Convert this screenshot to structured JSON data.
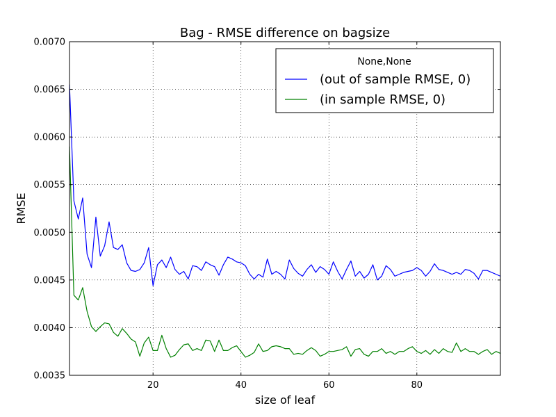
{
  "chart_data": {
    "type": "line",
    "title": "Bag - RMSE difference on bagsize",
    "xlabel": "size of leaf",
    "ylabel": "RMSE",
    "xlim": [
      1,
      99
    ],
    "ylim": [
      0.0035,
      0.007
    ],
    "xticks": [
      20,
      40,
      60,
      80
    ],
    "yticks": [
      0.0035,
      0.004,
      0.0045,
      0.005,
      0.0055,
      0.006,
      0.0065,
      0.007
    ],
    "ytick_labels": [
      "0.0035",
      "0.0040",
      "0.0045",
      "0.0050",
      "0.0055",
      "0.0060",
      "0.0065",
      "0.0070"
    ],
    "grid": true,
    "legend": {
      "title": "None,None",
      "position": "top-right"
    },
    "x": [
      1,
      2,
      3,
      4,
      5,
      6,
      7,
      8,
      9,
      10,
      11,
      12,
      13,
      14,
      15,
      16,
      17,
      18,
      19,
      20,
      21,
      22,
      23,
      24,
      25,
      26,
      27,
      28,
      29,
      30,
      31,
      32,
      33,
      34,
      35,
      36,
      37,
      38,
      39,
      40,
      41,
      42,
      43,
      44,
      45,
      46,
      47,
      48,
      49,
      50,
      51,
      52,
      53,
      54,
      55,
      56,
      57,
      58,
      59,
      60,
      61,
      62,
      63,
      64,
      65,
      66,
      67,
      68,
      69,
      70,
      71,
      72,
      73,
      74,
      75,
      76,
      77,
      78,
      79,
      80,
      81,
      82,
      83,
      84,
      85,
      86,
      87,
      88,
      89,
      90,
      91,
      92,
      93,
      94,
      95,
      96,
      97,
      98,
      99
    ],
    "series": [
      {
        "name": "(out of sample RMSE, 0)",
        "color": "#0000ff",
        "values": [
          0.00655,
          0.00533,
          0.00514,
          0.00536,
          0.00477,
          0.00463,
          0.00516,
          0.00475,
          0.00486,
          0.00511,
          0.00484,
          0.00482,
          0.00487,
          0.00468,
          0.0046,
          0.00459,
          0.00461,
          0.00468,
          0.00484,
          0.00444,
          0.00466,
          0.00471,
          0.00463,
          0.00474,
          0.00461,
          0.00456,
          0.00459,
          0.00451,
          0.00465,
          0.00464,
          0.0046,
          0.00469,
          0.00466,
          0.00464,
          0.00455,
          0.00466,
          0.00474,
          0.00472,
          0.00469,
          0.00468,
          0.00465,
          0.00456,
          0.00451,
          0.00456,
          0.00453,
          0.00472,
          0.00456,
          0.00459,
          0.00456,
          0.00451,
          0.00471,
          0.00462,
          0.00457,
          0.00454,
          0.00461,
          0.00466,
          0.00458,
          0.00464,
          0.00461,
          0.00456,
          0.00469,
          0.00459,
          0.00451,
          0.00461,
          0.0047,
          0.00454,
          0.00459,
          0.00452,
          0.00456,
          0.00466,
          0.0045,
          0.00454,
          0.00465,
          0.00461,
          0.00454,
          0.00456,
          0.00458,
          0.00459,
          0.0046,
          0.00463,
          0.0046,
          0.00454,
          0.00459,
          0.00467,
          0.00461,
          0.0046,
          0.00458,
          0.00456,
          0.00458,
          0.00456,
          0.00461,
          0.0046,
          0.00457,
          0.00451,
          0.0046,
          0.0046,
          0.00458,
          0.00456,
          0.00454
        ]
      },
      {
        "name": "(in sample RMSE, 0)",
        "color": "#008000",
        "values": [
          0.0059,
          0.00434,
          0.00429,
          0.00442,
          0.00417,
          0.00401,
          0.00396,
          0.00401,
          0.00405,
          0.00404,
          0.00395,
          0.00391,
          0.00399,
          0.00394,
          0.00388,
          0.00385,
          0.0037,
          0.00384,
          0.0039,
          0.00376,
          0.00376,
          0.00392,
          0.00378,
          0.00369,
          0.00371,
          0.00377,
          0.00382,
          0.00383,
          0.00376,
          0.00378,
          0.00376,
          0.00387,
          0.00386,
          0.00375,
          0.00387,
          0.00376,
          0.00376,
          0.00379,
          0.00381,
          0.00375,
          0.00369,
          0.00371,
          0.00374,
          0.00383,
          0.00375,
          0.00376,
          0.0038,
          0.00381,
          0.0038,
          0.00378,
          0.00378,
          0.00372,
          0.00373,
          0.00372,
          0.00376,
          0.00379,
          0.00376,
          0.0037,
          0.00372,
          0.00375,
          0.00375,
          0.00376,
          0.00377,
          0.0038,
          0.0037,
          0.00377,
          0.00378,
          0.00372,
          0.0037,
          0.00375,
          0.00375,
          0.00378,
          0.00373,
          0.00375,
          0.00372,
          0.00375,
          0.00375,
          0.00378,
          0.0038,
          0.00375,
          0.00373,
          0.00376,
          0.00372,
          0.00377,
          0.00373,
          0.00378,
          0.00375,
          0.00374,
          0.00384,
          0.00375,
          0.00378,
          0.00375,
          0.00375,
          0.00372,
          0.00375,
          0.00377,
          0.00372,
          0.00375,
          0.00373
        ]
      }
    ]
  }
}
